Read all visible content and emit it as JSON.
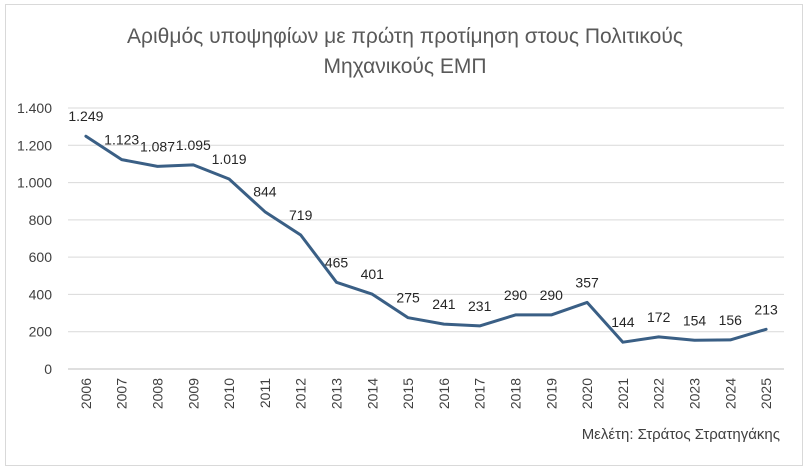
{
  "chart_data": {
    "type": "line",
    "title_lines": [
      "Αριθμός υποψηφίων με πρώτη προτίμηση στους Πολιτικούς",
      "Μηχανικούς ΕΜΠ"
    ],
    "categories": [
      "2006",
      "2007",
      "2008",
      "2009",
      "2010",
      "2011",
      "2012",
      "2013",
      "2014",
      "2015",
      "2016",
      "2017",
      "2018",
      "2019",
      "2020",
      "2021",
      "2022",
      "2023",
      "2024",
      "2025"
    ],
    "values": [
      1249,
      1123,
      1087,
      1095,
      1019,
      844,
      719,
      465,
      401,
      275,
      241,
      231,
      290,
      290,
      357,
      144,
      172,
      154,
      156,
      213
    ],
    "data_labels": [
      "1.249",
      "1.123",
      "1.087",
      "1.095",
      "1.019",
      "844",
      "719",
      "465",
      "401",
      "275",
      "241",
      "231",
      "290",
      "290",
      "357",
      "144",
      "172",
      "154",
      "156",
      "213"
    ],
    "ylim": [
      0,
      1400
    ],
    "yticks": [
      0,
      200,
      400,
      600,
      800,
      1000,
      1200,
      1400
    ],
    "ytick_labels": [
      "0",
      "200",
      "400",
      "600",
      "800",
      "1.000",
      "1.200",
      "1.400"
    ],
    "grid": true,
    "line_color": "#3a5f85",
    "xlabel": "",
    "ylabel": ""
  },
  "credit": "Μελέτη: Στράτος Στρατηγάκης"
}
